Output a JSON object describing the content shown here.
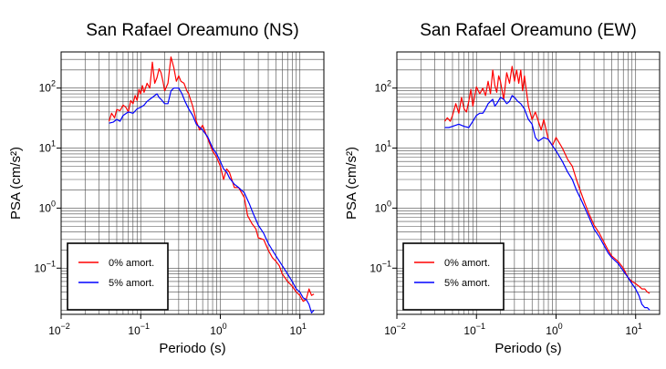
{
  "chart_data": [
    {
      "type": "line",
      "title": "San Rafael Oreamuno (NS)",
      "xlabel": "Periodo (s)",
      "ylabel": "PSA (cm/s²)",
      "xscale": "log",
      "yscale": "log",
      "xlim": [
        0.01,
        20
      ],
      "ylim": [
        0.017,
        400
      ],
      "xticks": [
        {
          "label": "10",
          "exp": "−2"
        },
        {
          "label": "10",
          "exp": "−1"
        },
        {
          "label": "10",
          "exp": "0"
        },
        {
          "label": "10",
          "exp": "1"
        }
      ],
      "yticks": [
        {
          "label": "10",
          "exp": "−1"
        },
        {
          "label": "10",
          "exp": "0"
        },
        {
          "label": "10",
          "exp": "1"
        },
        {
          "label": "10",
          "exp": "2"
        }
      ],
      "grid": true,
      "legend_position": "bottom-left",
      "series": [
        {
          "name": "0% amort.",
          "color": "#ff0000",
          "x": [
            0.04,
            0.043,
            0.047,
            0.05,
            0.055,
            0.06,
            0.065,
            0.07,
            0.075,
            0.08,
            0.085,
            0.09,
            0.095,
            0.1,
            0.105,
            0.11,
            0.12,
            0.13,
            0.14,
            0.15,
            0.16,
            0.17,
            0.18,
            0.19,
            0.2,
            0.22,
            0.24,
            0.26,
            0.28,
            0.3,
            0.32,
            0.35,
            0.38,
            0.4,
            0.45,
            0.5,
            0.55,
            0.6,
            0.65,
            0.7,
            0.8,
            0.9,
            1.0,
            1.1,
            1.2,
            1.3,
            1.5,
            1.7,
            2.0,
            2.2,
            2.5,
            2.8,
            3.0,
            3.5,
            4.0,
            4.5,
            5.0,
            5.5,
            6.0,
            7.0,
            8.0,
            9.0,
            10.0,
            11.0,
            12.0,
            13.0,
            14.0,
            15.0
          ],
          "y": [
            28,
            38,
            32,
            44,
            42,
            52,
            48,
            40,
            62,
            55,
            75,
            62,
            95,
            80,
            110,
            85,
            120,
            100,
            270,
            120,
            150,
            210,
            180,
            130,
            90,
            120,
            330,
            220,
            130,
            160,
            130,
            120,
            90,
            80,
            50,
            28,
            20,
            24,
            18,
            14,
            9,
            7,
            5,
            3,
            4.5,
            4,
            2.2,
            2.2,
            1.5,
            0.75,
            0.55,
            0.45,
            0.32,
            0.3,
            0.2,
            0.15,
            0.13,
            0.11,
            0.08,
            0.06,
            0.05,
            0.04,
            0.035,
            0.028,
            0.03,
            0.045,
            0.035,
            0.037
          ]
        },
        {
          "name": "5% amort.",
          "color": "#0000ff",
          "x": [
            0.04,
            0.045,
            0.05,
            0.055,
            0.06,
            0.07,
            0.08,
            0.09,
            0.1,
            0.11,
            0.12,
            0.13,
            0.14,
            0.15,
            0.16,
            0.17,
            0.18,
            0.2,
            0.22,
            0.24,
            0.26,
            0.28,
            0.3,
            0.33,
            0.36,
            0.4,
            0.45,
            0.5,
            0.6,
            0.7,
            0.8,
            0.9,
            1.0,
            1.1,
            1.2,
            1.3,
            1.5,
            1.7,
            2.0,
            2.3,
            2.6,
            3.0,
            3.5,
            4.0,
            4.5,
            5.0,
            6.0,
            7.0,
            8.0,
            9.0,
            10.0,
            11.0,
            12.0,
            13.0,
            14.0,
            15.0
          ],
          "y": [
            26,
            27,
            30,
            28,
            35,
            40,
            38,
            45,
            48,
            52,
            60,
            65,
            70,
            75,
            80,
            70,
            65,
            55,
            55,
            90,
            100,
            100,
            100,
            80,
            60,
            45,
            35,
            25,
            20,
            15,
            10,
            8,
            6,
            4.5,
            4,
            3.2,
            2.5,
            2.2,
            1.8,
            1.2,
            0.8,
            0.52,
            0.38,
            0.26,
            0.2,
            0.16,
            0.11,
            0.08,
            0.06,
            0.045,
            0.04,
            0.032,
            0.03,
            0.025,
            0.018,
            0.02
          ]
        }
      ]
    },
    {
      "type": "line",
      "title": "San Rafael Oreamuno (EW)",
      "xlabel": "Periodo (s)",
      "ylabel": "PSA (cm/s²)",
      "xscale": "log",
      "yscale": "log",
      "xlim": [
        0.01,
        20
      ],
      "ylim": [
        0.017,
        400
      ],
      "xticks": [
        {
          "label": "10",
          "exp": "−2"
        },
        {
          "label": "10",
          "exp": "−1"
        },
        {
          "label": "10",
          "exp": "0"
        },
        {
          "label": "10",
          "exp": "1"
        }
      ],
      "yticks": [
        {
          "label": "10",
          "exp": "−1"
        },
        {
          "label": "10",
          "exp": "0"
        },
        {
          "label": "10",
          "exp": "1"
        },
        {
          "label": "10",
          "exp": "2"
        }
      ],
      "grid": true,
      "legend_position": "bottom-left",
      "series": [
        {
          "name": "0% amort.",
          "color": "#ff0000",
          "x": [
            0.04,
            0.043,
            0.047,
            0.05,
            0.055,
            0.06,
            0.065,
            0.07,
            0.075,
            0.08,
            0.085,
            0.09,
            0.1,
            0.11,
            0.12,
            0.13,
            0.14,
            0.15,
            0.16,
            0.17,
            0.18,
            0.19,
            0.2,
            0.22,
            0.24,
            0.26,
            0.28,
            0.3,
            0.32,
            0.34,
            0.36,
            0.38,
            0.4,
            0.45,
            0.5,
            0.55,
            0.6,
            0.65,
            0.7,
            0.8,
            0.9,
            1.0,
            1.2,
            1.4,
            1.6,
            1.8,
            2.0,
            2.3,
            2.6,
            3.0,
            3.5,
            4.0,
            4.5,
            5.0,
            6.0,
            7.0,
            8.0,
            9.0,
            10.0,
            11.0,
            12.0,
            13.0,
            14.0,
            15.0
          ],
          "y": [
            28,
            32,
            28,
            35,
            55,
            38,
            70,
            45,
            40,
            60,
            95,
            50,
            105,
            80,
            100,
            75,
            130,
            80,
            200,
            110,
            85,
            160,
            130,
            65,
            180,
            120,
            230,
            130,
            200,
            120,
            200,
            90,
            160,
            50,
            30,
            40,
            28,
            20,
            30,
            14,
            11,
            15,
            10,
            6.5,
            5,
            3,
            2,
            1.2,
            0.8,
            0.52,
            0.38,
            0.27,
            0.2,
            0.16,
            0.13,
            0.1,
            0.07,
            0.06,
            0.055,
            0.05,
            0.045,
            0.045,
            0.04,
            0.038
          ]
        },
        {
          "name": "5% amort.",
          "color": "#0000ff",
          "x": [
            0.04,
            0.045,
            0.05,
            0.06,
            0.07,
            0.08,
            0.09,
            0.1,
            0.11,
            0.12,
            0.13,
            0.14,
            0.15,
            0.16,
            0.17,
            0.18,
            0.2,
            0.22,
            0.24,
            0.26,
            0.28,
            0.3,
            0.33,
            0.36,
            0.4,
            0.45,
            0.5,
            0.55,
            0.6,
            0.7,
            0.8,
            0.9,
            1.0,
            1.2,
            1.4,
            1.6,
            1.8,
            2.0,
            2.3,
            2.6,
            3.0,
            3.5,
            4.0,
            4.5,
            5.0,
            6.0,
            7.0,
            8.0,
            9.0,
            10.0,
            11.0,
            12.0,
            13.0,
            14.0,
            15.0
          ],
          "y": [
            22,
            22,
            23,
            25,
            23,
            22,
            28,
            35,
            38,
            38,
            45,
            55,
            60,
            65,
            50,
            55,
            70,
            65,
            55,
            60,
            75,
            70,
            60,
            55,
            45,
            30,
            25,
            15,
            13,
            15,
            14,
            11,
            9,
            6,
            4,
            3,
            2,
            1.5,
            1,
            0.7,
            0.45,
            0.33,
            0.24,
            0.18,
            0.15,
            0.12,
            0.09,
            0.07,
            0.055,
            0.045,
            0.035,
            0.025,
            0.022,
            0.022,
            0.02
          ]
        }
      ]
    }
  ]
}
